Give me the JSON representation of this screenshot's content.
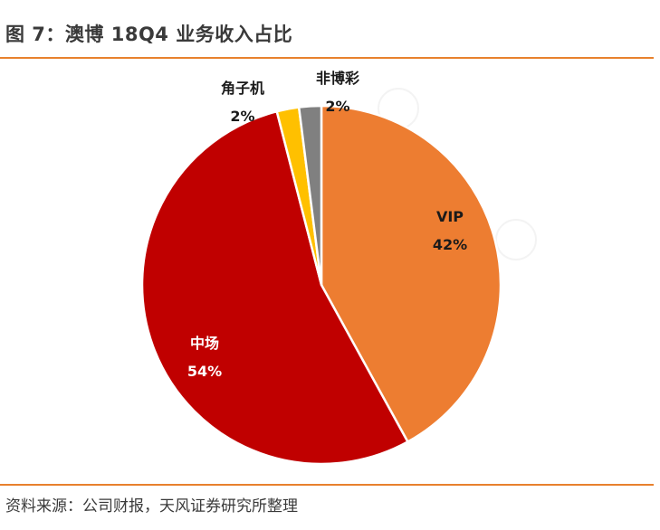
{
  "header": {
    "title": "图 7：澳博 18Q4 业务收入占比"
  },
  "footer": {
    "source": "资料来源：公司财报，天风证券研究所整理"
  },
  "colors": {
    "accent_rule": "#e8812d",
    "text": "#3a3a3a"
  },
  "chart_data": {
    "type": "pie",
    "title": "",
    "slices": [
      {
        "label": "VIP",
        "value": 42,
        "value_label": "42%",
        "color": "#ED7D31"
      },
      {
        "label": "中场",
        "value": 54,
        "value_label": "54%",
        "color": "#C00000"
      },
      {
        "label": "角子机",
        "value": 2,
        "value_label": "2%",
        "color": "#FFC000"
      },
      {
        "label": "非博彩",
        "value": 2,
        "value_label": "2%",
        "color": "#808080"
      }
    ],
    "legend": "none"
  }
}
